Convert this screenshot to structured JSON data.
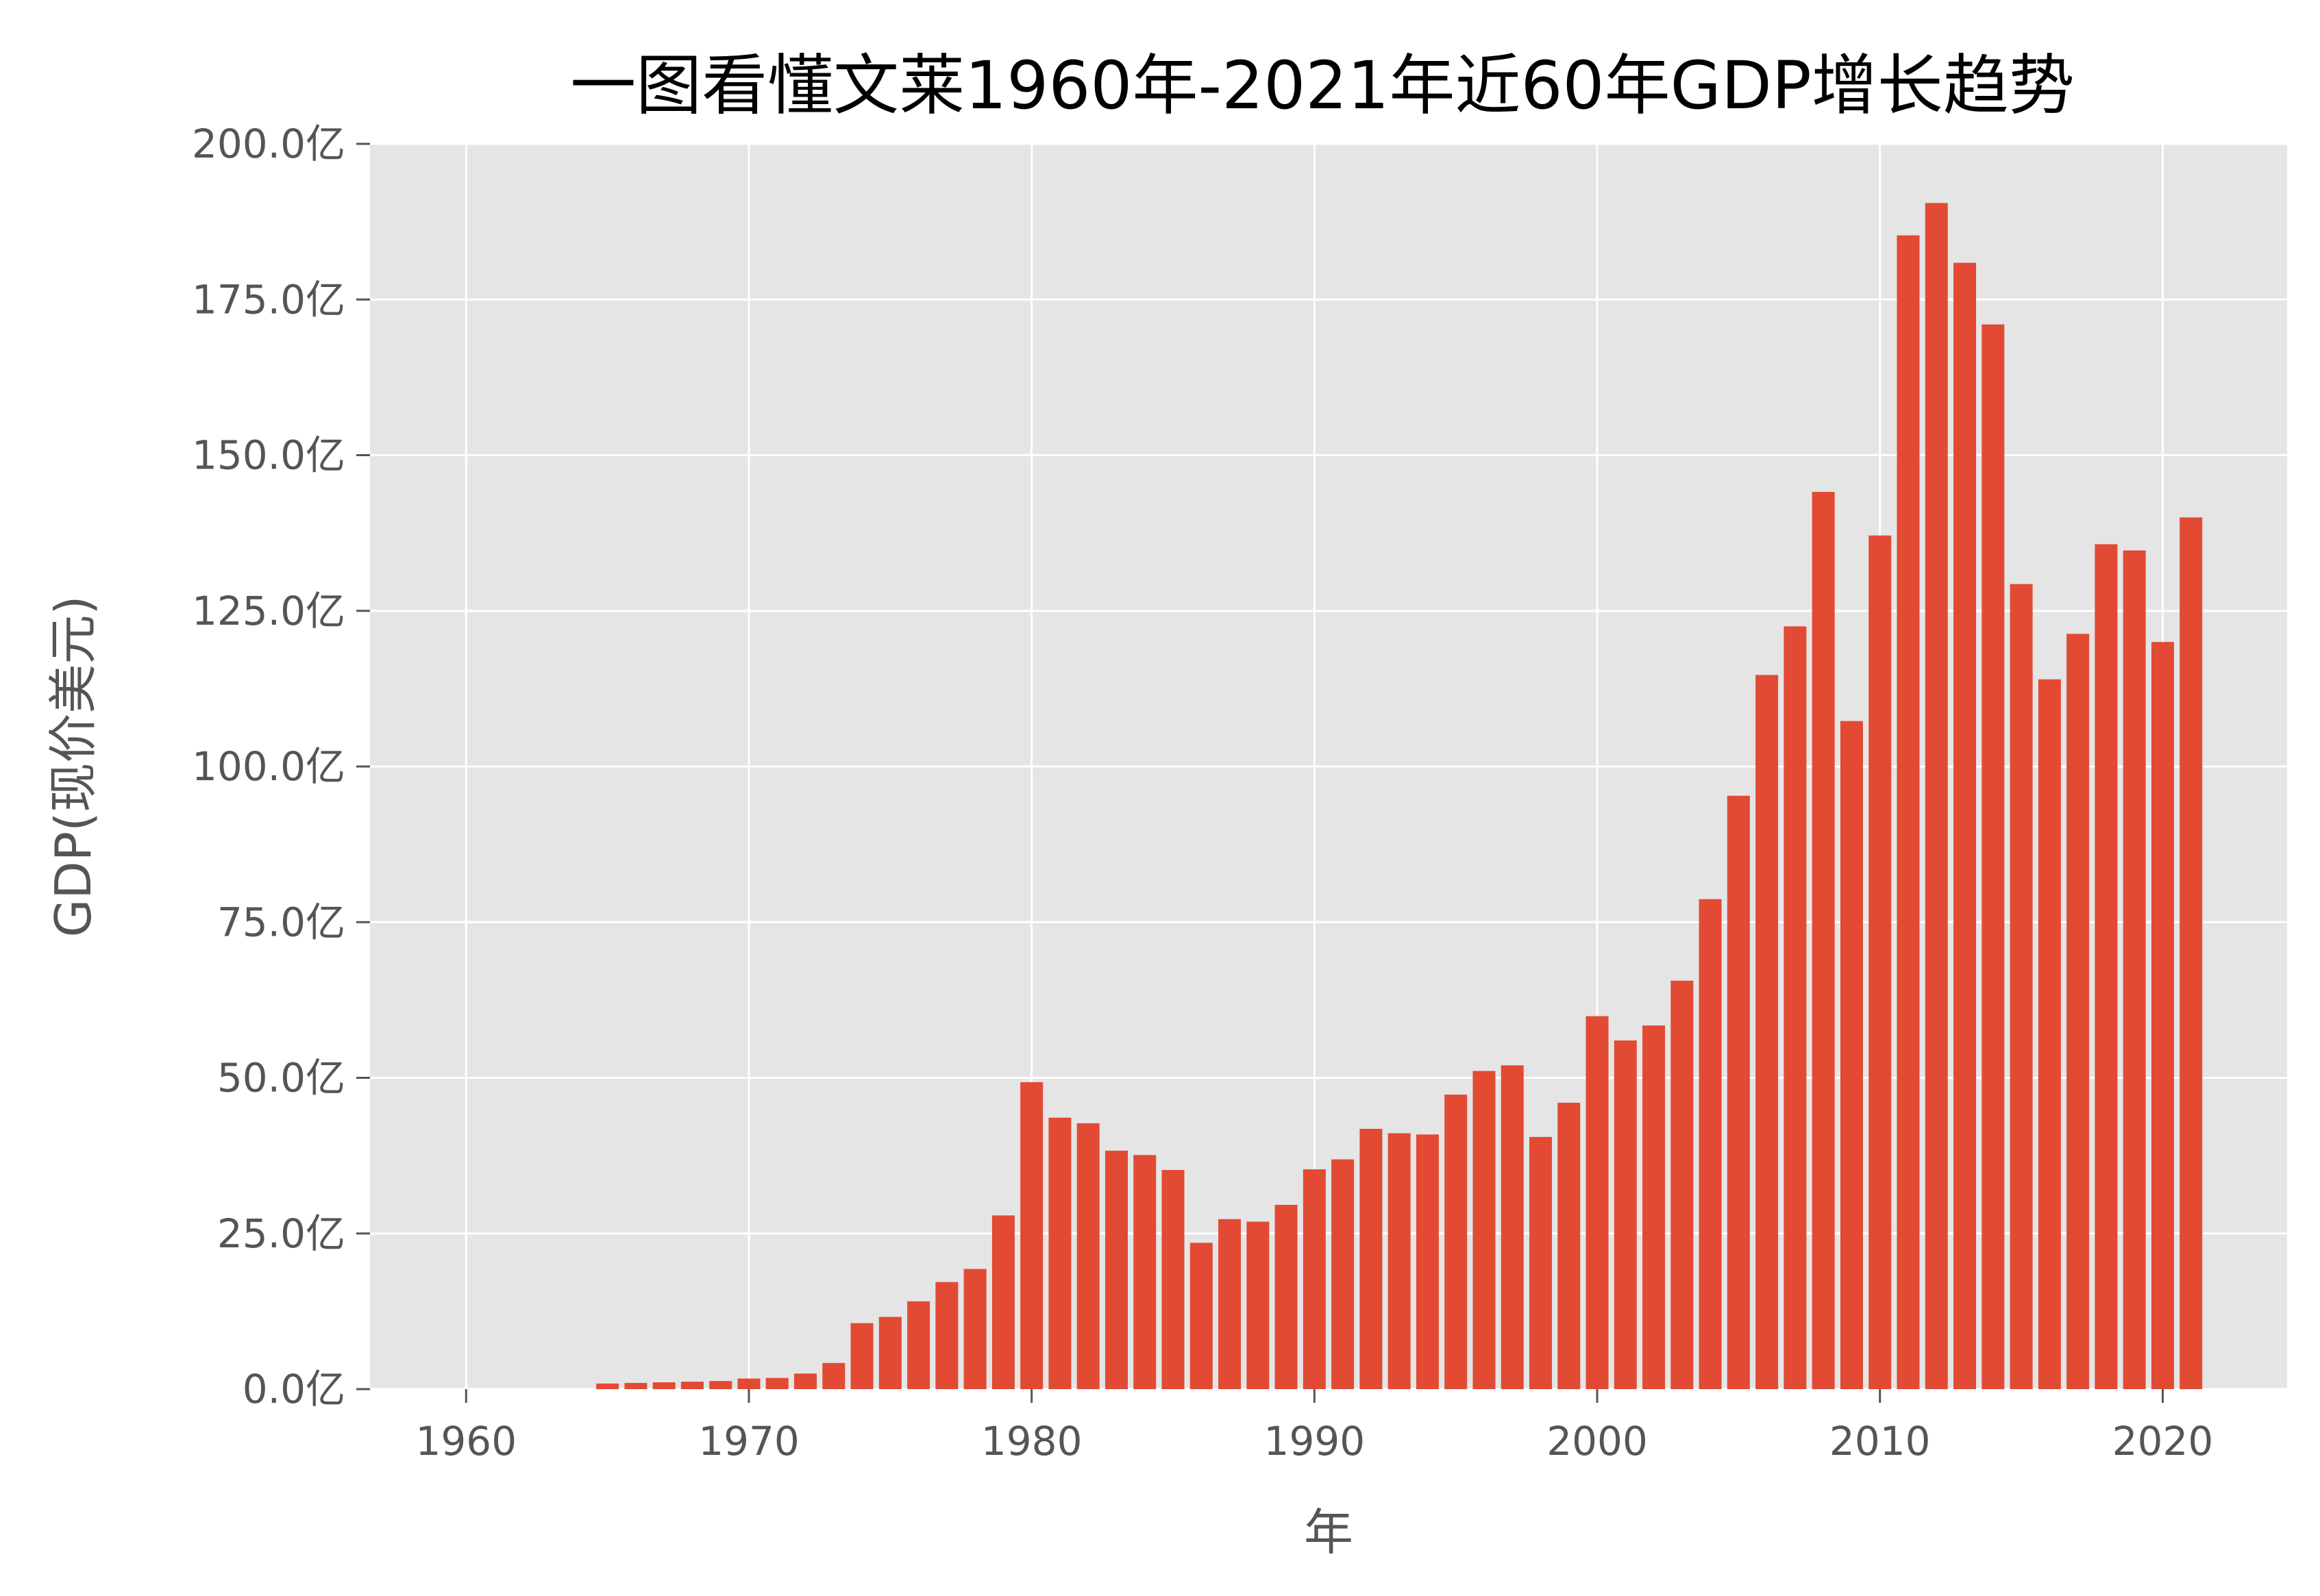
{
  "chart_data": {
    "type": "bar",
    "title": "一图看懂文莱1960年-2021年近60年GDP增长趋势",
    "xlabel": "年",
    "ylabel": "GDP(现价美元)",
    "ylim": [
      0,
      200
    ],
    "xlim": [
      1956.6,
      2024.4
    ],
    "x_ticks": [
      1960,
      1970,
      1980,
      1990,
      2000,
      2010,
      2020
    ],
    "y_ticks": [
      0,
      25,
      50,
      75,
      100,
      125,
      150,
      175,
      200
    ],
    "y_tick_suffix": "亿",
    "y_unit": "亿美元",
    "grid": true,
    "colors": {
      "bar": "#E24A33",
      "plot_bg": "#E5E5E5",
      "grid": "#FFFFFF"
    },
    "x": [
      1965,
      1966,
      1967,
      1968,
      1969,
      1970,
      1971,
      1972,
      1973,
      1974,
      1975,
      1976,
      1977,
      1978,
      1979,
      1980,
      1981,
      1982,
      1983,
      1984,
      1985,
      1986,
      1987,
      1988,
      1989,
      1990,
      1991,
      1992,
      1993,
      1994,
      1995,
      1996,
      1997,
      1998,
      1999,
      2000,
      2001,
      2002,
      2003,
      2004,
      2005,
      2006,
      2007,
      2008,
      2009,
      2010,
      2011,
      2012,
      2013,
      2014,
      2015,
      2016,
      2017,
      2018,
      2019,
      2020,
      2021
    ],
    "values": [
      0.9,
      1.0,
      1.1,
      1.2,
      1.3,
      1.7,
      1.8,
      2.5,
      4.2,
      10.6,
      11.6,
      14.1,
      17.2,
      19.3,
      27.9,
      49.3,
      43.6,
      42.7,
      38.3,
      37.6,
      35.2,
      23.5,
      27.3,
      26.9,
      29.6,
      35.3,
      36.9,
      41.8,
      41.1,
      40.9,
      47.3,
      51.1,
      52.0,
      40.5,
      46.0,
      59.9,
      56.0,
      58.4,
      65.6,
      78.7,
      95.3,
      114.7,
      122.5,
      144.1,
      107.3,
      137.1,
      185.3,
      190.5,
      180.9,
      171.0,
      129.3,
      114.0,
      121.3,
      135.7,
      134.7,
      120.0,
      140.0
    ]
  }
}
